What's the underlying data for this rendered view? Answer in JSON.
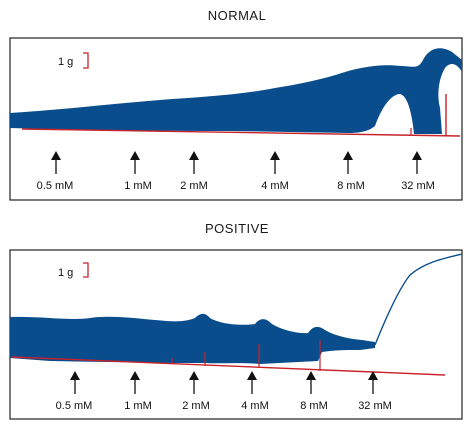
{
  "panels": [
    {
      "title": "NORMAL",
      "scale_label": "1 g",
      "concentrations": [
        "0.5 mM",
        "1 mM",
        "2 mM",
        "4 mM",
        "8 mM",
        "32 mM"
      ]
    },
    {
      "title": "POSITIVE",
      "scale_label": "1 g",
      "concentrations": [
        "0.5 mM",
        "1 mM",
        "2 mM",
        "4 mM",
        "8 mM",
        "32 mM"
      ]
    }
  ],
  "colors": {
    "trace": "#0a4d8c",
    "baseline": "#c8222a",
    "frame": "#222222",
    "arrow": "#111111"
  }
}
